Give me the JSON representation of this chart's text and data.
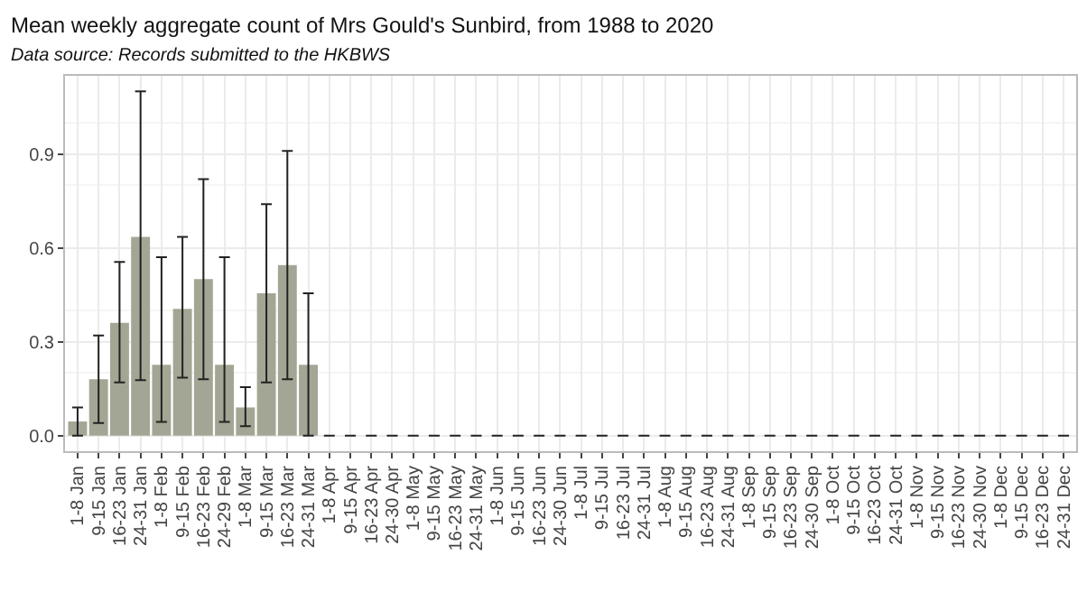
{
  "chart_data": {
    "type": "bar",
    "title": "Mean weekly aggregate count of Mrs Gould's Sunbird, from 1988 to 2020",
    "subtitle": "Data source: Records submitted to the HKBWS",
    "categories": [
      "1-8 Jan",
      "9-15 Jan",
      "16-23 Jan",
      "24-31 Jan",
      "1-8 Feb",
      "9-15 Feb",
      "16-23 Feb",
      "24-29 Feb",
      "1-8 Mar",
      "9-15 Mar",
      "16-23 Mar",
      "24-31 Mar",
      "1-8 Apr",
      "9-15 Apr",
      "16-23 Apr",
      "24-30 Apr",
      "1-8 May",
      "9-15 May",
      "16-23 May",
      "24-31 May",
      "1-8 Jun",
      "9-15 Jun",
      "16-23 Jun",
      "24-30 Jun",
      "1-8 Jul",
      "9-15 Jul",
      "16-23 Jul",
      "24-31 Jul",
      "1-8 Aug",
      "9-15 Aug",
      "16-23 Aug",
      "24-31 Aug",
      "1-8 Sep",
      "9-15 Sep",
      "16-23 Sep",
      "24-30 Sep",
      "1-8 Oct",
      "9-15 Oct",
      "16-23 Oct",
      "24-31 Oct",
      "1-8 Nov",
      "9-15 Nov",
      "16-23 Nov",
      "24-30 Nov",
      "1-8 Dec",
      "9-15 Dec",
      "16-23 Dec",
      "24-31 Dec"
    ],
    "values": [
      0.045,
      0.18,
      0.36,
      0.635,
      0.226,
      0.405,
      0.5,
      0.226,
      0.09,
      0.455,
      0.545,
      0.226,
      0,
      0,
      0,
      0,
      0,
      0,
      0,
      0,
      0,
      0,
      0,
      0,
      0,
      0,
      0,
      0,
      0,
      0,
      0,
      0,
      0,
      0,
      0,
      0,
      0,
      0,
      0,
      0,
      0,
      0,
      0,
      0,
      0,
      0,
      0,
      0
    ],
    "errors": [
      [
        0,
        0.09
      ],
      [
        0.04,
        0.32
      ],
      [
        0.17,
        0.555
      ],
      [
        0.177,
        1.1
      ],
      [
        0.044,
        0.57
      ],
      [
        0.185,
        0.635
      ],
      [
        0.18,
        0.82
      ],
      [
        0.044,
        0.57
      ],
      [
        0.03,
        0.155
      ],
      [
        0.17,
        0.74
      ],
      [
        0.18,
        0.91
      ],
      [
        0,
        0.455
      ],
      [
        0,
        0
      ],
      [
        0,
        0
      ],
      [
        0,
        0
      ],
      [
        0,
        0
      ],
      [
        0,
        0
      ],
      [
        0,
        0
      ],
      [
        0,
        0
      ],
      [
        0,
        0
      ],
      [
        0,
        0
      ],
      [
        0,
        0
      ],
      [
        0,
        0
      ],
      [
        0,
        0
      ],
      [
        0,
        0
      ],
      [
        0,
        0
      ],
      [
        0,
        0
      ],
      [
        0,
        0
      ],
      [
        0,
        0
      ],
      [
        0,
        0
      ],
      [
        0,
        0
      ],
      [
        0,
        0
      ],
      [
        0,
        0
      ],
      [
        0,
        0
      ],
      [
        0,
        0
      ],
      [
        0,
        0
      ],
      [
        0,
        0
      ],
      [
        0,
        0
      ],
      [
        0,
        0
      ],
      [
        0,
        0
      ],
      [
        0,
        0
      ],
      [
        0,
        0
      ],
      [
        0,
        0
      ],
      [
        0,
        0
      ],
      [
        0,
        0
      ],
      [
        0,
        0
      ],
      [
        0,
        0
      ],
      [
        0,
        0
      ]
    ],
    "color": "#a3a694",
    "ylim": [
      -0.05,
      1.15
    ],
    "yticks": [
      {
        "value": 0,
        "label": "0.0"
      },
      0.3,
      0.6,
      0.9
    ],
    "grid": true
  }
}
